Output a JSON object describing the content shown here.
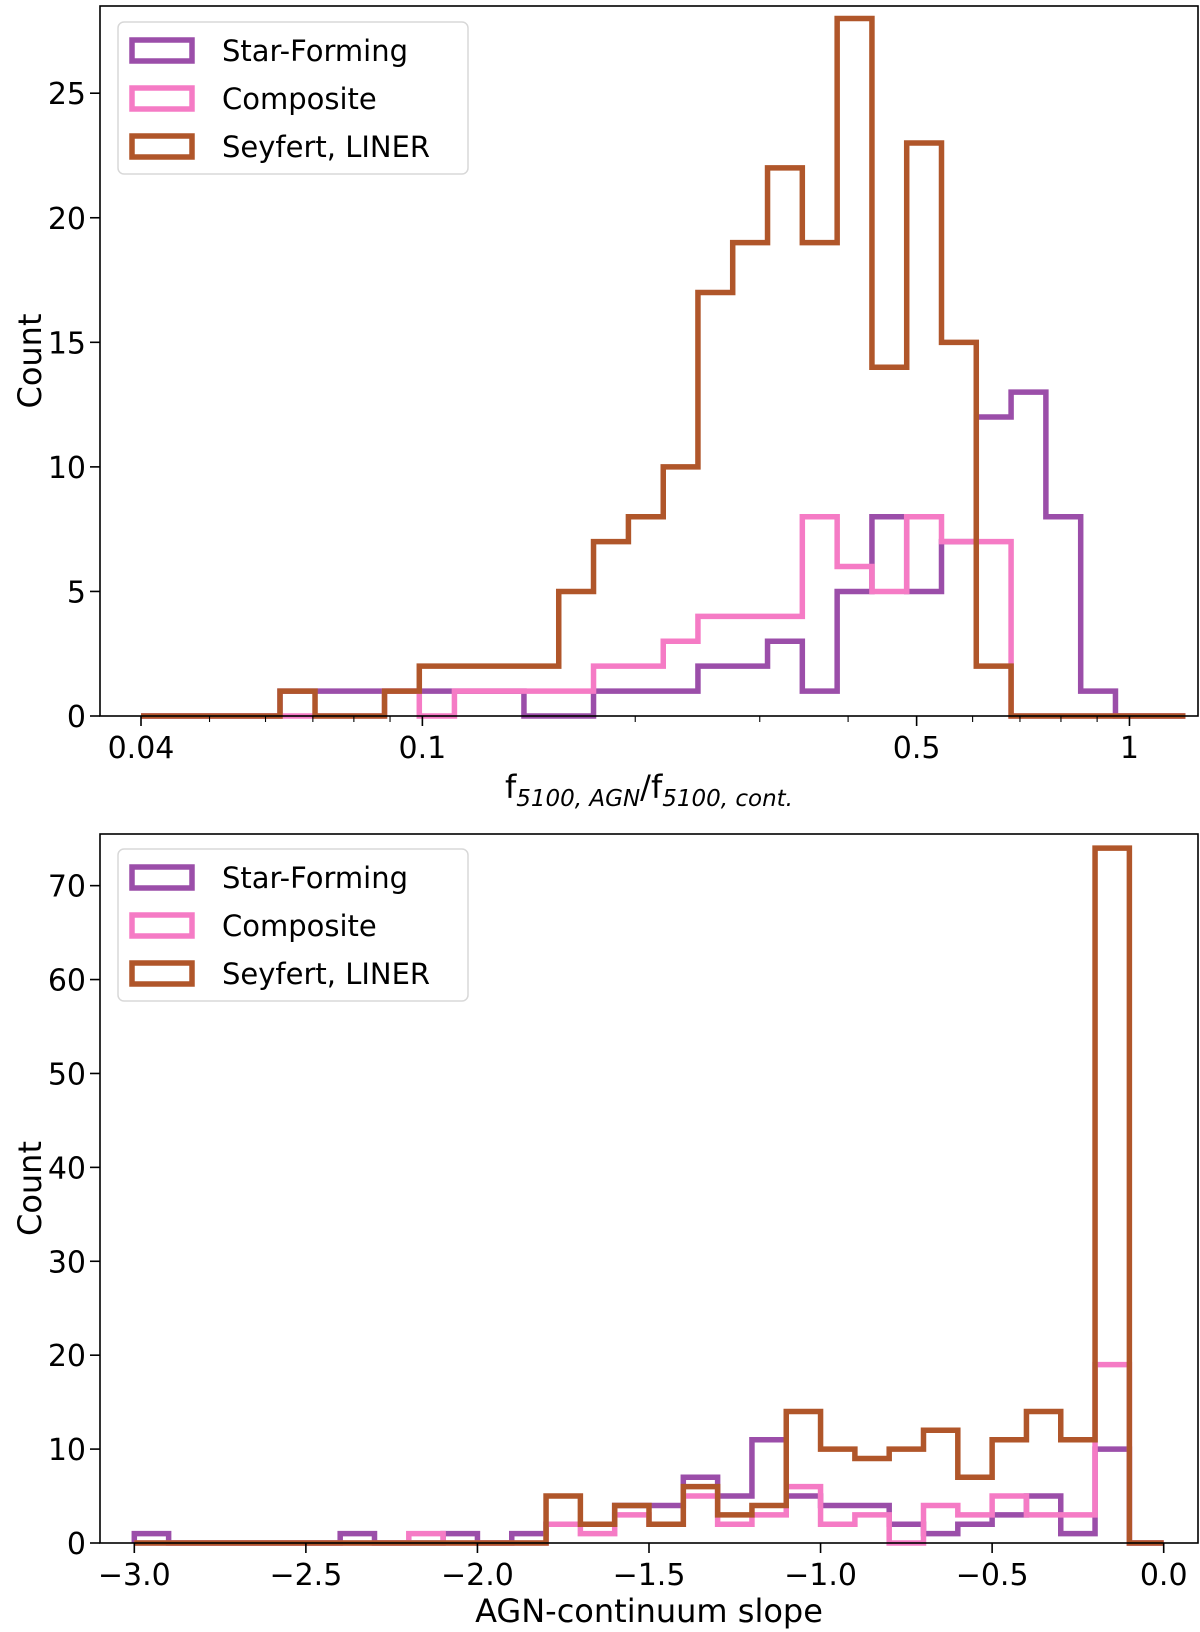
{
  "chart_data": [
    {
      "type": "histogram",
      "x_scale": "log",
      "xlim": [
        0.035,
        1.25
      ],
      "ylim": [
        0,
        28.5
      ],
      "xlabel_main": "f",
      "xlabel_sub1": "5100, AGN",
      "xlabel_sep": "/f",
      "xlabel_sub2": "5100, cont.",
      "ylabel": "Count",
      "x_ticks": [
        0.04,
        0.1,
        0.5,
        1
      ],
      "x_tick_labels": [
        "0.04",
        "0.1",
        "0.5",
        "1"
      ],
      "y_ticks": [
        0,
        5,
        10,
        15,
        20,
        25
      ],
      "y_tick_labels": [
        "0",
        "5",
        "10",
        "15",
        "20",
        "25"
      ],
      "legend_position": "upper left",
      "bin_edges": [
        0.04,
        0.0448,
        0.0502,
        0.0562,
        0.0629,
        0.0705,
        0.079,
        0.0884,
        0.099,
        0.111,
        0.1243,
        0.1392,
        0.1559,
        0.1746,
        0.1956,
        0.2191,
        0.2453,
        0.2747,
        0.3077,
        0.3446,
        0.386,
        0.4323,
        0.4841,
        0.5422,
        0.6072,
        0.6801,
        0.7617,
        0.8531,
        0.9554,
        1.07,
        1.2
      ],
      "series": [
        {
          "name": "Star-Forming",
          "color": "#9b4ea9",
          "counts": [
            0,
            0,
            0,
            0,
            1,
            1,
            1,
            1,
            1,
            1,
            1,
            0,
            0,
            1,
            1,
            1,
            2,
            2,
            3,
            1,
            5,
            8,
            5,
            7,
            12,
            13,
            8,
            1,
            0,
            0
          ]
        },
        {
          "name": "Composite",
          "color": "#f57bc5",
          "counts": [
            0,
            0,
            0,
            0,
            0,
            0,
            0,
            1,
            0,
            1,
            1,
            1,
            1,
            2,
            2,
            3,
            4,
            4,
            4,
            8,
            6,
            5,
            8,
            7,
            7,
            0,
            0,
            0,
            0,
            0
          ]
        },
        {
          "name": "Seyfert, LINER",
          "color": "#b0562a",
          "counts": [
            0,
            0,
            0,
            0,
            1,
            0,
            0,
            1,
            2,
            2,
            2,
            2,
            5,
            7,
            8,
            10,
            17,
            19,
            22,
            19,
            28,
            14,
            23,
            15,
            2,
            0,
            0,
            0,
            0,
            0
          ]
        }
      ]
    },
    {
      "type": "histogram",
      "x_scale": "linear",
      "xlim": [
        -3.1,
        0.1
      ],
      "ylim": [
        0,
        75.5
      ],
      "xlabel": "AGN-continuum slope",
      "ylabel": "Count",
      "x_ticks": [
        -3.0,
        -2.5,
        -2.0,
        -1.5,
        -1.0,
        -0.5,
        0.0
      ],
      "x_tick_labels": [
        "−3.0",
        "−2.5",
        "−2.0",
        "−1.5",
        "−1.0",
        "−0.5",
        "0.0"
      ],
      "y_ticks": [
        0,
        10,
        20,
        30,
        40,
        50,
        60,
        70
      ],
      "y_tick_labels": [
        "0",
        "10",
        "20",
        "30",
        "40",
        "50",
        "60",
        "70"
      ],
      "legend_position": "upper left",
      "bin_edges": [
        -3.0,
        -2.9,
        -2.8,
        -2.7,
        -2.6,
        -2.5,
        -2.4,
        -2.3,
        -2.2,
        -2.1,
        -2.0,
        -1.9,
        -1.8,
        -1.7,
        -1.6,
        -1.5,
        -1.4,
        -1.3,
        -1.2,
        -1.1,
        -1.0,
        -0.9,
        -0.8,
        -0.7,
        -0.6,
        -0.5,
        -0.4,
        -0.3,
        -0.2,
        -0.1,
        0.0
      ],
      "series": [
        {
          "name": "Star-Forming",
          "color": "#9b4ea9",
          "counts": [
            1,
            0,
            0,
            0,
            0,
            0,
            1,
            0,
            0,
            1,
            0,
            1,
            2,
            2,
            4,
            4,
            7,
            5,
            11,
            5,
            4,
            4,
            2,
            1,
            2,
            3,
            5,
            1,
            10,
            0
          ]
        },
        {
          "name": "Composite",
          "color": "#f57bc5",
          "counts": [
            0,
            0,
            0,
            0,
            0,
            0,
            0,
            0,
            1,
            0,
            0,
            0,
            2,
            1,
            3,
            2,
            5,
            2,
            3,
            6,
            2,
            3,
            0,
            4,
            3,
            5,
            3,
            3,
            19,
            0
          ]
        },
        {
          "name": "Seyfert, LINER",
          "color": "#b0562a",
          "counts": [
            0,
            0,
            0,
            0,
            0,
            0,
            0,
            0,
            0,
            0,
            0,
            0,
            5,
            2,
            4,
            2,
            6,
            3,
            4,
            14,
            10,
            9,
            10,
            12,
            7,
            11,
            14,
            11,
            74,
            0
          ]
        }
      ]
    }
  ]
}
